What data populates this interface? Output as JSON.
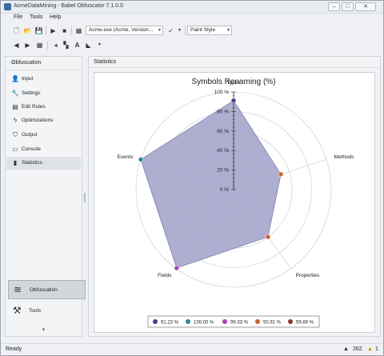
{
  "window": {
    "title": "AcmeDataMining - Babel Obfuscator 7.1.0.0",
    "minimize_icon": "minimize-icon",
    "maximize_icon": "maximize-icon",
    "close_icon": "close-icon"
  },
  "menu": [
    "File",
    "Tools",
    "Help"
  ],
  "toolbar": {
    "target_combo": "Acme.exe (Acme, Version...",
    "style_combo": "Paint Style"
  },
  "sidebar": {
    "title": "Obfuscation",
    "items": [
      {
        "label": "Input",
        "icon": "user-icon"
      },
      {
        "label": "Settings",
        "icon": "wrench-icon"
      },
      {
        "label": "Edit Rules",
        "icon": "rules-icon"
      },
      {
        "label": "Optimizations",
        "icon": "lightning-icon"
      },
      {
        "label": "Output",
        "icon": "output-icon"
      },
      {
        "label": "Console",
        "icon": "console-icon"
      },
      {
        "label": "Statistics",
        "icon": "chart-icon"
      }
    ],
    "sections": [
      {
        "label": "Obfuscation",
        "icon": "obfuscation-icon"
      },
      {
        "label": "Tools",
        "icon": "tools-icon"
      }
    ]
  },
  "panel": {
    "title": "Statistics"
  },
  "chart_data": {
    "type": "radar",
    "title": "Symbols Renaming (%)",
    "axes": [
      "Types",
      "Methods",
      "Properties",
      "Fields",
      "Events"
    ],
    "values": [
      91.23,
      50.91,
      59.89,
      99.33,
      100.0
    ],
    "ticks": [
      "0 %",
      "20 %",
      "40 %",
      "60 %",
      "80 %",
      "100 %"
    ],
    "ylim": [
      0,
      100
    ],
    "marker_colors": [
      "#4b3c8c",
      "#c8612d",
      "#c8612d",
      "#b23ab6",
      "#2f8a8c"
    ],
    "legend": [
      {
        "label": "91.23 %",
        "color": "#4b3c8c"
      },
      {
        "label": "100.00 %",
        "color": "#2f8a8c"
      },
      {
        "label": "99.33 %",
        "color": "#b23ab6"
      },
      {
        "label": "50.91 %",
        "color": "#c8612d"
      },
      {
        "label": "59.89 %",
        "color": "#8b3b2a"
      }
    ],
    "fill_color": "#9fa0c8"
  },
  "status": {
    "text": "Ready",
    "count_a": "262",
    "count_b": "1"
  }
}
